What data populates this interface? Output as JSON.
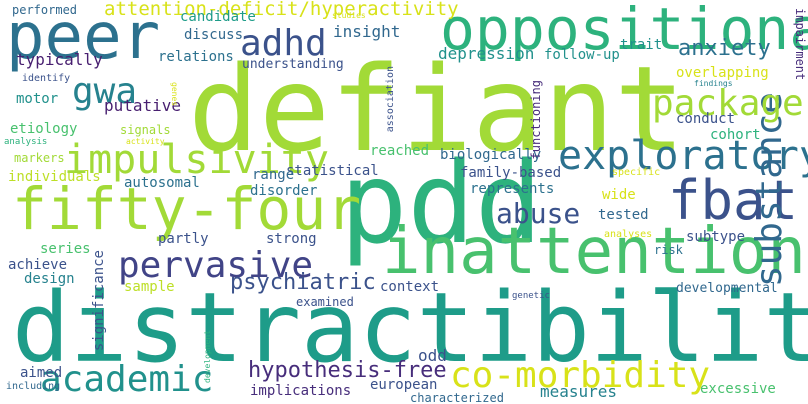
{
  "words": [
    {
      "text": "defiant",
      "color": "#a2da37"
    },
    {
      "text": "distractibility",
      "color": "#1e9c89"
    },
    {
      "text": "pdd",
      "color": "#2db27d"
    },
    {
      "text": "peer",
      "color": "#2c718e"
    },
    {
      "text": "oppositional",
      "color": "#2db27d"
    },
    {
      "text": "inattention",
      "color": "#48c16e"
    },
    {
      "text": "fifty-four",
      "color": "#a2da37"
    },
    {
      "text": "impulsivity",
      "color": "#a2da37"
    },
    {
      "text": "fbat",
      "color": "#3b528b"
    },
    {
      "text": "exploratory",
      "color": "#2c718e"
    },
    {
      "text": "academic",
      "color": "#21918c"
    },
    {
      "text": "co-morbidity",
      "color": "#d8e219"
    },
    {
      "text": "substance",
      "color": "#31688e"
    },
    {
      "text": "pervasive",
      "color": "#414487"
    },
    {
      "text": "package",
      "color": "#a2da37"
    },
    {
      "text": "adhd",
      "color": "#3b528b"
    },
    {
      "text": "gwa",
      "color": "#26828e"
    },
    {
      "text": "abuse",
      "color": "#3b528b"
    },
    {
      "text": "hypothesis-free",
      "color": "#472d7b"
    },
    {
      "text": "psychiatric",
      "color": "#3b528b"
    },
    {
      "text": "anxiety",
      "color": "#2c718e"
    },
    {
      "text": "attention-deficit/hyperactivity",
      "color": "#d8e219"
    },
    {
      "text": "depression",
      "color": "#21918c"
    },
    {
      "text": "insight",
      "color": "#31688e"
    },
    {
      "text": "discuss",
      "color": "#31688e"
    },
    {
      "text": "relations",
      "color": "#2c718e"
    },
    {
      "text": "typically",
      "color": "#481f70"
    },
    {
      "text": "understanding",
      "color": "#3b528b"
    },
    {
      "text": "follow-up",
      "color": "#21918c"
    },
    {
      "text": "trait",
      "color": "#21918c"
    },
    {
      "text": "candidate",
      "color": "#1e9c89"
    },
    {
      "text": "putative",
      "color": "#481f70"
    },
    {
      "text": "motor",
      "color": "#21918c"
    },
    {
      "text": "etiology",
      "color": "#48c16e"
    },
    {
      "text": "overlapping",
      "color": "#d8e219"
    },
    {
      "text": "conduct",
      "color": "#3b528b"
    },
    {
      "text": "cohort",
      "color": "#2db27d"
    },
    {
      "text": "reached",
      "color": "#48c16e"
    },
    {
      "text": "biologically",
      "color": "#31688e"
    },
    {
      "text": "statistical",
      "color": "#3b528b"
    },
    {
      "text": "family-based",
      "color": "#3b528b"
    },
    {
      "text": "autosomal",
      "color": "#2c718e"
    },
    {
      "text": "range",
      "color": "#31688e"
    },
    {
      "text": "disorder",
      "color": "#2c718e"
    },
    {
      "text": "represents",
      "color": "#2c718e"
    },
    {
      "text": "individuals",
      "color": "#bddf26"
    },
    {
      "text": "wide",
      "color": "#d8e219"
    },
    {
      "text": "tested",
      "color": "#31688e"
    },
    {
      "text": "subtype",
      "color": "#3b528b"
    },
    {
      "text": "strong",
      "color": "#3b528b"
    },
    {
      "text": "partly",
      "color": "#3b528b"
    },
    {
      "text": "series",
      "color": "#48c16e"
    },
    {
      "text": "achieve",
      "color": "#3b528b"
    },
    {
      "text": "design",
      "color": "#26828e"
    },
    {
      "text": "sample",
      "color": "#bddf26"
    },
    {
      "text": "context",
      "color": "#3b528b"
    },
    {
      "text": "examined",
      "color": "#3b528b"
    },
    {
      "text": "developmental",
      "color": "#31688e"
    },
    {
      "text": "odd",
      "color": "#3b528b"
    },
    {
      "text": "european",
      "color": "#3b528b"
    },
    {
      "text": "implications",
      "color": "#472d7b"
    },
    {
      "text": "characterized",
      "color": "#31688e"
    },
    {
      "text": "measures",
      "color": "#26828e"
    },
    {
      "text": "excessive",
      "color": "#48c16e"
    },
    {
      "text": "aimed",
      "color": "#3b528b"
    },
    {
      "text": "including",
      "color": "#31688e"
    },
    {
      "text": "performed",
      "color": "#31688e"
    },
    {
      "text": "identify",
      "color": "#3b528b"
    },
    {
      "text": "analysis",
      "color": "#2db27d"
    },
    {
      "text": "markers",
      "color": "#a2da37"
    },
    {
      "text": "signals",
      "color": "#a2da37"
    },
    {
      "text": "activity",
      "color": "#d8e219"
    },
    {
      "text": "studies",
      "color": "#d8e219"
    },
    {
      "text": "genes",
      "color": "#d8e219"
    },
    {
      "text": "findings",
      "color": "#26828e"
    },
    {
      "text": "impairment",
      "color": "#472d7b"
    },
    {
      "text": "specific",
      "color": "#d8e219"
    },
    {
      "text": "analyses",
      "color": "#d8e219"
    },
    {
      "text": "risk",
      "color": "#2c718e"
    },
    {
      "text": "genetic",
      "color": "#3b528b"
    },
    {
      "text": "association",
      "color": "#3b528b"
    },
    {
      "text": "functioning",
      "color": "#472d7b"
    },
    {
      "text": "significance",
      "color": "#3b528b"
    },
    {
      "text": "development",
      "color": "#2db27d"
    }
  ]
}
